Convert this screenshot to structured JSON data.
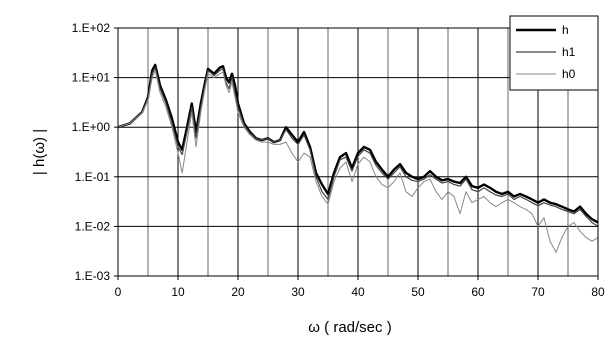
{
  "chart_data": {
    "type": "line",
    "title": "",
    "xlabel": "ω ( rad/sec )",
    "ylabel": "| h(ω) |",
    "xlim": [
      0,
      80
    ],
    "ylim": [
      0.001,
      100
    ],
    "yscale": "log",
    "x_ticks": [
      0,
      10,
      20,
      30,
      40,
      50,
      60,
      70,
      80
    ],
    "x_tick_labels": [
      "0",
      "10",
      "20",
      "30",
      "40",
      "50",
      "60",
      "70",
      "80"
    ],
    "y_ticks": [
      0.001,
      0.01,
      0.1,
      1,
      10,
      100
    ],
    "y_tick_labels": [
      "1.E-03",
      "1.E-02",
      "1.E-01",
      "1.E+00",
      "1.E+01",
      "1.E+02"
    ],
    "grid": true,
    "legend": "top-right",
    "series": [
      {
        "name": "h",
        "color": "#000000",
        "x": [
          0,
          2,
          4,
          5,
          5.7,
          6.2,
          7,
          8,
          9,
          10,
          10.7,
          11.5,
          12.3,
          13,
          13.8,
          14.5,
          15,
          16,
          17,
          17.5,
          18,
          18.5,
          19,
          19.5,
          20,
          21,
          22,
          23,
          24,
          25,
          26,
          27,
          28,
          29,
          30,
          31,
          32,
          33,
          34,
          35,
          36,
          37,
          38,
          39,
          40,
          41,
          42,
          43,
          44,
          45,
          46,
          47,
          48,
          49,
          50,
          51,
          52,
          53,
          54,
          55,
          56,
          57,
          58,
          59,
          60,
          61,
          62,
          63,
          64,
          65,
          66,
          67,
          68,
          69,
          70,
          71,
          72,
          73,
          74,
          75,
          76,
          77,
          78,
          79,
          80
        ],
        "values": [
          1.0,
          1.2,
          2.0,
          4.0,
          14,
          18,
          7,
          3.5,
          1.5,
          0.5,
          0.35,
          1.0,
          3.0,
          0.8,
          3.0,
          8,
          15,
          12,
          16,
          17,
          10,
          8,
          12,
          7,
          3,
          1.2,
          0.8,
          0.6,
          0.55,
          0.6,
          0.5,
          0.55,
          1.0,
          0.7,
          0.5,
          0.8,
          0.4,
          0.12,
          0.07,
          0.045,
          0.12,
          0.25,
          0.3,
          0.15,
          0.3,
          0.4,
          0.35,
          0.2,
          0.14,
          0.1,
          0.14,
          0.18,
          0.12,
          0.1,
          0.09,
          0.1,
          0.13,
          0.1,
          0.085,
          0.09,
          0.08,
          0.075,
          0.1,
          0.065,
          0.06,
          0.07,
          0.06,
          0.05,
          0.045,
          0.05,
          0.04,
          0.045,
          0.04,
          0.035,
          0.03,
          0.035,
          0.03,
          0.028,
          0.025,
          0.022,
          0.02,
          0.025,
          0.018,
          0.014,
          0.012
        ]
      },
      {
        "name": "h1",
        "color": "#444444",
        "x": [
          0,
          2,
          4,
          5,
          5.7,
          6.2,
          7,
          8,
          9,
          10,
          10.7,
          11.5,
          12.3,
          13,
          13.8,
          14.5,
          15,
          16,
          17,
          17.5,
          18,
          18.5,
          19,
          19.5,
          20,
          21,
          22,
          23,
          24,
          25,
          26,
          27,
          28,
          29,
          30,
          31,
          32,
          33,
          34,
          35,
          36,
          37,
          38,
          39,
          40,
          41,
          42,
          43,
          44,
          45,
          46,
          47,
          48,
          49,
          50,
          51,
          52,
          53,
          54,
          55,
          56,
          57,
          58,
          59,
          60,
          61,
          62,
          63,
          64,
          65,
          66,
          67,
          68,
          69,
          70,
          71,
          72,
          73,
          74,
          75,
          76,
          77,
          78,
          79,
          80
        ],
        "values": [
          1.0,
          1.2,
          2.0,
          3.8,
          12,
          16,
          6,
          3.0,
          1.2,
          0.4,
          0.28,
          0.8,
          2.5,
          0.6,
          2.5,
          7,
          14,
          11,
          14,
          15,
          8,
          6,
          10,
          5,
          2.5,
          1.1,
          0.75,
          0.6,
          0.55,
          0.6,
          0.5,
          0.55,
          0.9,
          0.6,
          0.45,
          0.7,
          0.35,
          0.1,
          0.05,
          0.035,
          0.1,
          0.22,
          0.25,
          0.13,
          0.26,
          0.35,
          0.3,
          0.17,
          0.12,
          0.09,
          0.12,
          0.16,
          0.1,
          0.085,
          0.08,
          0.09,
          0.11,
          0.09,
          0.075,
          0.08,
          0.07,
          0.065,
          0.09,
          0.055,
          0.05,
          0.06,
          0.05,
          0.043,
          0.04,
          0.045,
          0.035,
          0.04,
          0.035,
          0.03,
          0.026,
          0.03,
          0.027,
          0.025,
          0.022,
          0.02,
          0.018,
          0.022,
          0.016,
          0.012,
          0.01
        ]
      },
      {
        "name": "h0",
        "color": "#888888",
        "x": [
          0,
          2,
          4,
          5,
          5.7,
          6.2,
          7,
          8,
          9,
          10,
          10.7,
          11.5,
          12.3,
          13,
          13.8,
          14.5,
          15,
          16,
          17,
          17.5,
          18,
          18.5,
          19,
          19.5,
          20,
          21,
          22,
          23,
          24,
          25,
          26,
          27,
          28,
          29,
          30,
          31,
          32,
          33,
          34,
          35,
          36,
          37,
          38,
          39,
          40,
          41,
          42,
          43,
          44,
          45,
          46,
          47,
          48,
          49,
          50,
          51,
          52,
          53,
          54,
          55,
          56,
          57,
          58,
          59,
          60,
          61,
          62,
          63,
          64,
          65,
          66,
          67,
          68,
          69,
          70,
          71,
          72,
          73,
          74,
          75,
          76,
          77,
          78,
          79,
          80
        ],
        "values": [
          1.0,
          1.2,
          1.9,
          3.5,
          10,
          14,
          5,
          2.5,
          1.0,
          0.3,
          0.12,
          0.5,
          2.0,
          0.4,
          2.0,
          6,
          12,
          10,
          12,
          13,
          7,
          5,
          8,
          4,
          2.0,
          1.0,
          0.7,
          0.55,
          0.5,
          0.5,
          0.45,
          0.45,
          0.5,
          0.3,
          0.2,
          0.3,
          0.25,
          0.08,
          0.04,
          0.028,
          0.08,
          0.15,
          0.2,
          0.08,
          0.18,
          0.25,
          0.2,
          0.1,
          0.07,
          0.06,
          0.08,
          0.12,
          0.05,
          0.04,
          0.06,
          0.08,
          0.09,
          0.05,
          0.035,
          0.05,
          0.04,
          0.018,
          0.05,
          0.03,
          0.035,
          0.04,
          0.03,
          0.025,
          0.03,
          0.035,
          0.03,
          0.025,
          0.022,
          0.018,
          0.01,
          0.015,
          0.005,
          0.003,
          0.006,
          0.01,
          0.012,
          0.008,
          0.006,
          0.005,
          0.006
        ]
      }
    ]
  }
}
